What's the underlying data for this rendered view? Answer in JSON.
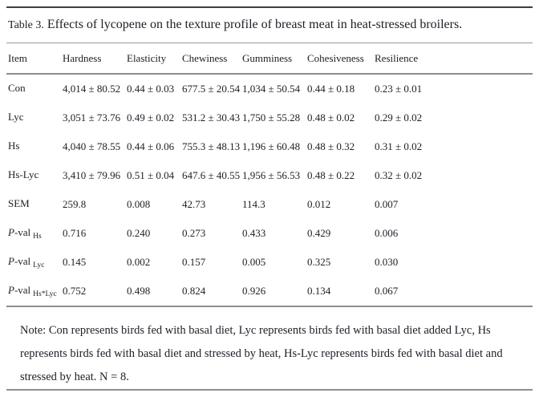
{
  "title": {
    "label": "Table 3.",
    "text": " Effects of lycopene on the texture profile of breast meat in heat-stressed broilers."
  },
  "table": {
    "columns": [
      "Item",
      "Hardness",
      "Elasticity",
      "Chewiness",
      "Gumminess",
      "Cohesiveness",
      "Resilience"
    ],
    "rows": [
      {
        "label_p": "",
        "label": "Con",
        "label_sub": "",
        "cells": [
          "4,014 ± 80.52",
          "0.44 ± 0.03",
          "677.5 ± 20.54",
          "1,034 ± 50.54",
          "0.44 ± 0.18",
          "0.23 ± 0.01"
        ]
      },
      {
        "label_p": "",
        "label": "Lyc",
        "label_sub": "",
        "cells": [
          "3,051 ± 73.76",
          "0.49 ± 0.02",
          "531.2 ± 30.43",
          "1,750 ± 55.28",
          "0.48 ± 0.02",
          "0.29 ± 0.02"
        ]
      },
      {
        "label_p": "",
        "label": "Hs",
        "label_sub": "",
        "cells": [
          "4,040 ± 78.55",
          "0.44 ± 0.06",
          "755.3 ± 48.13",
          "1,196 ± 60.48",
          "0.48 ± 0.32",
          "0.31 ± 0.02"
        ]
      },
      {
        "label_p": "",
        "label": "Hs-Lyc",
        "label_sub": "",
        "cells": [
          "3,410 ± 79.96",
          "0.51 ± 0.04",
          "647.6 ± 40.55",
          "1,956 ± 56.53",
          "0.48 ± 0.22",
          "0.32 ± 0.02"
        ]
      },
      {
        "label_p": "",
        "label": "SEM",
        "label_sub": "",
        "cells": [
          "259.8",
          "0.008",
          "42.73",
          "114.3",
          "0.012",
          "0.007"
        ]
      },
      {
        "label_p": "P",
        "label": "-val",
        "label_sub": "Hs",
        "cells": [
          "0.716",
          "0.240",
          "0.273",
          "0.433",
          "0.429",
          "0.006"
        ]
      },
      {
        "label_p": "P",
        "label": "-val",
        "label_sub": "Lyc",
        "cells": [
          "0.145",
          "0.002",
          "0.157",
          "0.005",
          "0.325",
          "0.030"
        ]
      },
      {
        "label_p": "P",
        "label": "-val",
        "label_sub": "Hs*Lyc",
        "cells": [
          "0.752",
          "0.498",
          "0.824",
          "0.926",
          "0.134",
          "0.067"
        ]
      }
    ]
  },
  "note": "Note: Con represents birds fed with basal diet, Lyc represents birds fed with basal diet added Lyc, Hs represents birds fed with basal diet and stressed by heat, Hs-Lyc represents birds fed with basal diet and stressed by heat. N = 8.",
  "colors": {
    "background": "#ffffff",
    "text": "#1e1e27",
    "rule_dark": "#3e3e46",
    "rule_gray": "#8d8d8d"
  }
}
